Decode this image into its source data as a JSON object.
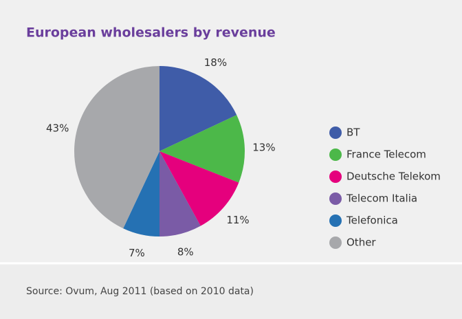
{
  "chart_data": {
    "type": "pie",
    "title": "European wholesalers by revenue",
    "categories": [
      "BT",
      "France Telecom",
      "Deutsche Telekom",
      "Telecom Italia",
      "Telefonica",
      "Other"
    ],
    "values": [
      18,
      13,
      11,
      8,
      7,
      43
    ],
    "value_labels": [
      "18%",
      "13%",
      "11%",
      "8%",
      "7%",
      "43%"
    ],
    "colors": [
      "#3f5ca8",
      "#4cb849",
      "#e5007d",
      "#7a5ba6",
      "#2571b3",
      "#a7a8ab"
    ],
    "legend": "right",
    "source": "Source: Ovum, Aug 2011 (based on 2010 data)"
  }
}
